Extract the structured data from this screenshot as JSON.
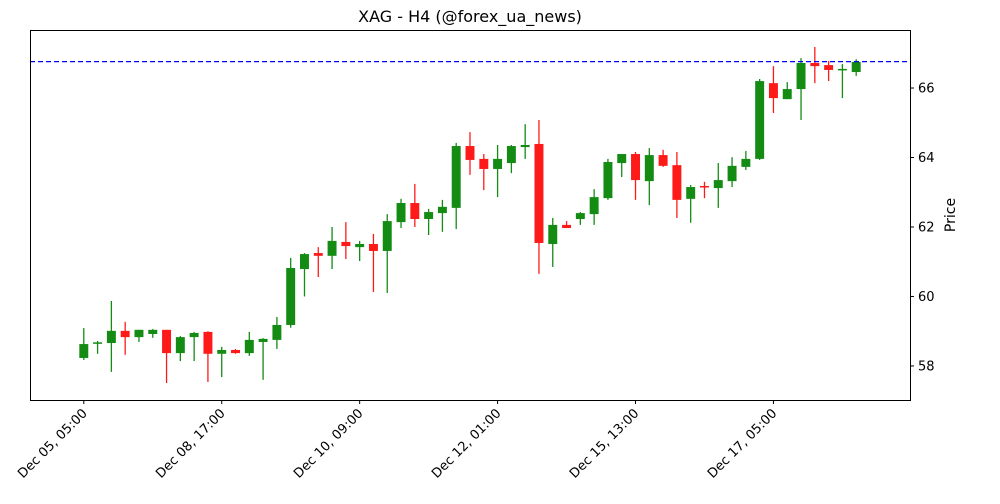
{
  "chart_data": {
    "type": "candlestick",
    "title": "XAG - H4 (@forex_ua_news)",
    "xlabel": "",
    "ylabel": "Price",
    "y_axis_side": "right",
    "ylim": [
      57.02,
      67.67
    ],
    "xlim_index": [
      -3.9,
      59.9
    ],
    "yticks": [
      58,
      60,
      62,
      64,
      66
    ],
    "xticks": [
      {
        "index": 0,
        "label": "Dec 05, 05:00"
      },
      {
        "index": 10,
        "label": "Dec 08, 17:00"
      },
      {
        "index": 20,
        "label": "Dec 10, 09:00"
      },
      {
        "index": 30,
        "label": "Dec 12, 01:00"
      },
      {
        "index": 40,
        "label": "Dec 15, 13:00"
      },
      {
        "index": 50,
        "label": "Dec 17, 05:00"
      }
    ],
    "grid": false,
    "colors": {
      "up": "#148c14",
      "down": "#ff1a1a",
      "reference_line": "#0000ff"
    },
    "reference_line": {
      "value": 66.76,
      "style": "dashed"
    },
    "candles": [
      [
        58.23,
        59.09,
        58.17,
        58.63
      ],
      [
        58.64,
        58.72,
        58.35,
        58.68
      ],
      [
        58.66,
        59.87,
        57.83,
        59.01
      ],
      [
        59.01,
        59.27,
        58.32,
        58.83
      ],
      [
        58.83,
        59.04,
        58.69,
        59.04
      ],
      [
        58.92,
        59.06,
        58.81,
        59.04
      ],
      [
        59.04,
        59.04,
        57.51,
        58.37
      ],
      [
        58.37,
        58.86,
        58.14,
        58.83
      ],
      [
        58.83,
        58.98,
        58.14,
        58.95
      ],
      [
        58.98,
        59.0,
        57.54,
        58.35
      ],
      [
        58.35,
        58.55,
        57.68,
        58.46
      ],
      [
        58.46,
        58.49,
        58.35,
        58.37
      ],
      [
        58.37,
        58.98,
        58.29,
        58.75
      ],
      [
        58.69,
        58.8,
        57.6,
        58.78
      ],
      [
        58.75,
        59.41,
        58.49,
        59.18
      ],
      [
        59.18,
        61.11,
        59.1,
        60.82
      ],
      [
        60.79,
        61.25,
        60.0,
        61.22
      ],
      [
        61.25,
        61.42,
        60.56,
        61.17
      ],
      [
        61.17,
        62.0,
        60.79,
        61.6
      ],
      [
        61.57,
        62.14,
        61.08,
        61.45
      ],
      [
        61.42,
        61.6,
        61.02,
        61.51
      ],
      [
        61.51,
        61.8,
        60.13,
        61.31
      ],
      [
        61.31,
        62.37,
        60.1,
        62.17
      ],
      [
        62.14,
        62.81,
        61.97,
        62.69
      ],
      [
        62.69,
        63.24,
        62.0,
        62.23
      ],
      [
        62.23,
        62.52,
        61.77,
        62.43
      ],
      [
        62.4,
        62.78,
        61.86,
        62.58
      ],
      [
        62.55,
        64.42,
        61.94,
        64.33
      ],
      [
        64.33,
        64.73,
        63.5,
        63.93
      ],
      [
        63.96,
        64.1,
        63.06,
        63.67
      ],
      [
        63.67,
        64.36,
        62.86,
        63.96
      ],
      [
        63.84,
        64.36,
        63.55,
        64.33
      ],
      [
        64.3,
        64.96,
        63.96,
        64.36
      ],
      [
        64.39,
        65.08,
        60.65,
        61.54
      ],
      [
        61.51,
        62.26,
        60.85,
        62.06
      ],
      [
        62.06,
        62.17,
        61.97,
        61.97
      ],
      [
        62.23,
        62.43,
        62.06,
        62.4
      ],
      [
        62.37,
        63.09,
        62.06,
        62.86
      ],
      [
        62.83,
        63.96,
        62.78,
        63.87
      ],
      [
        63.84,
        64.1,
        63.44,
        64.1
      ],
      [
        64.1,
        64.16,
        62.78,
        63.35
      ],
      [
        63.32,
        64.27,
        62.63,
        64.07
      ],
      [
        64.07,
        64.22,
        63.73,
        63.76
      ],
      [
        63.78,
        64.16,
        62.26,
        62.78
      ],
      [
        62.81,
        63.21,
        62.12,
        63.15
      ],
      [
        63.18,
        63.3,
        62.83,
        63.15
      ],
      [
        63.12,
        63.84,
        62.55,
        63.35
      ],
      [
        63.32,
        64.01,
        63.15,
        63.76
      ],
      [
        63.73,
        64.19,
        63.64,
        63.96
      ],
      [
        63.96,
        66.26,
        63.93,
        66.2
      ],
      [
        66.14,
        66.63,
        65.28,
        65.71
      ],
      [
        65.68,
        66.17,
        65.68,
        65.97
      ],
      [
        65.97,
        66.86,
        65.08,
        66.72
      ],
      [
        66.72,
        67.18,
        66.14,
        66.63
      ],
      [
        66.66,
        66.78,
        66.2,
        66.52
      ],
      [
        66.52,
        66.69,
        65.71,
        66.55
      ],
      [
        66.46,
        66.83,
        66.35,
        66.75
      ]
    ],
    "candle_format": [
      "open",
      "high",
      "low",
      "close"
    ]
  }
}
